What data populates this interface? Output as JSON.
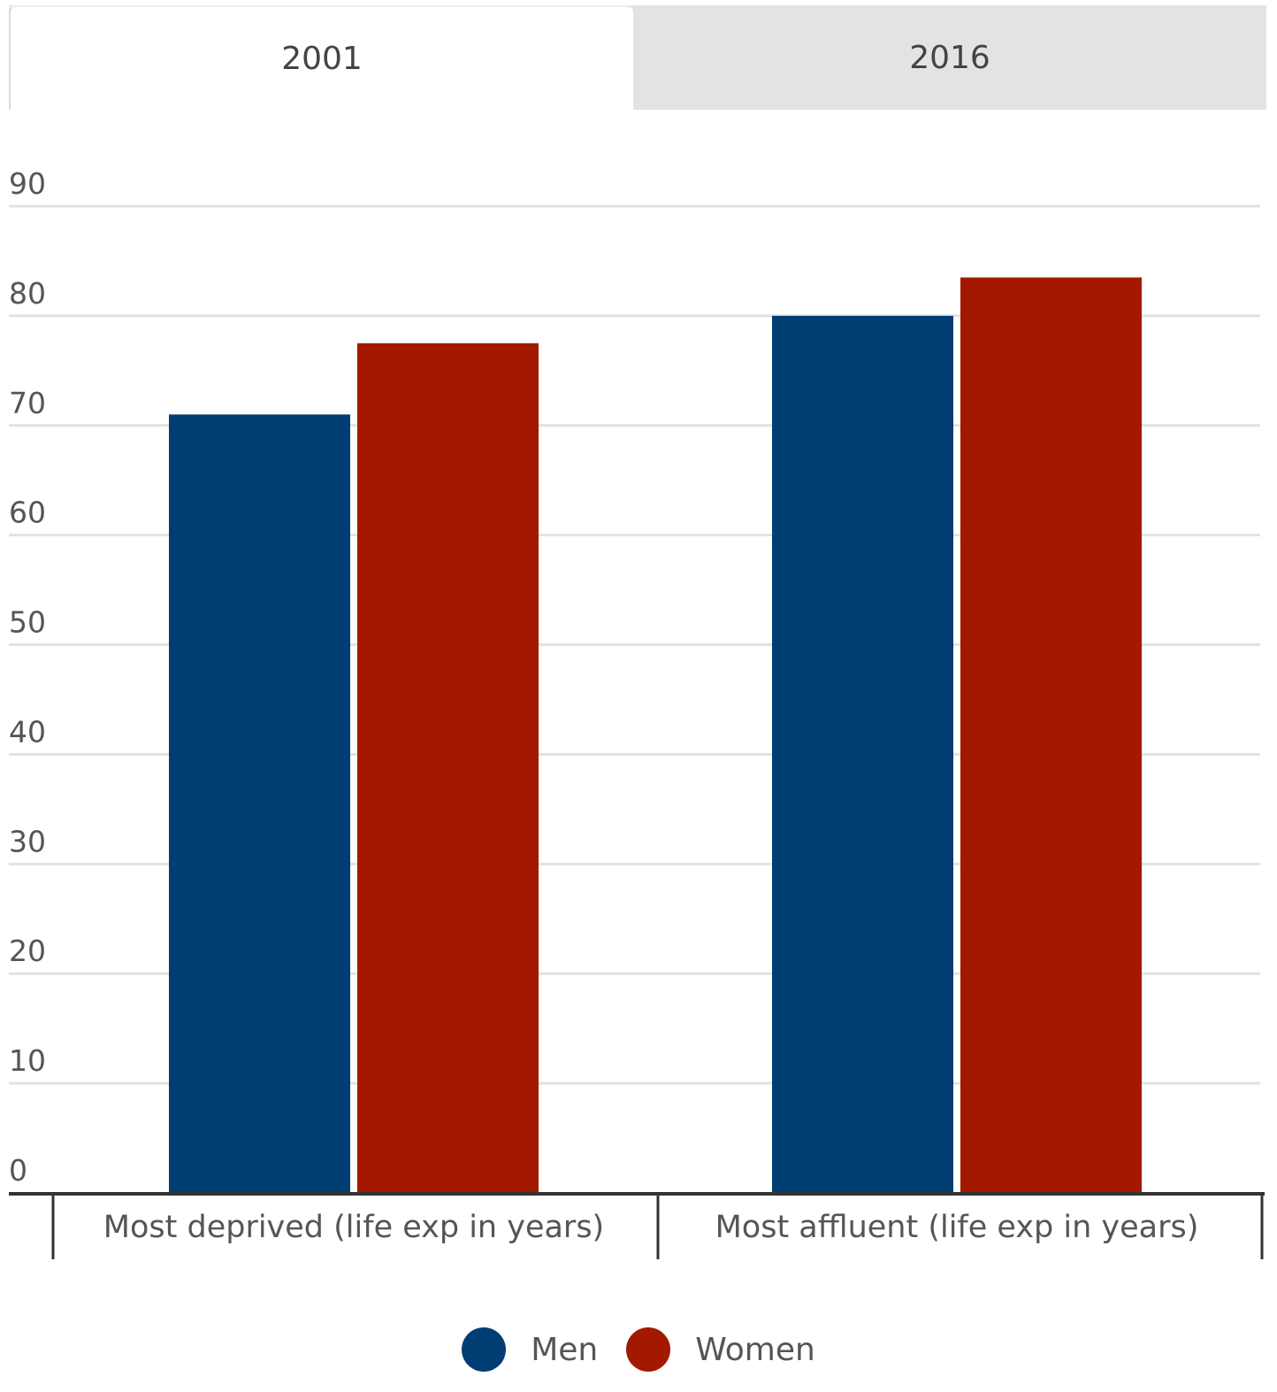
{
  "tabs": [
    {
      "label": "2001",
      "active": true
    },
    {
      "label": "2016",
      "active": false
    }
  ],
  "colors": {
    "men": "#003d73",
    "women": "#a31900",
    "grid": "#e2e2e2",
    "axis": "#333333"
  },
  "chart_data": {
    "type": "bar",
    "categories": [
      "Most deprived (life exp in years)",
      "Most affluent (life exp in years)"
    ],
    "series": [
      {
        "name": "Men",
        "values": [
          71,
          80
        ]
      },
      {
        "name": "Women",
        "values": [
          77.5,
          83.5
        ]
      }
    ],
    "yticks": [
      0,
      10,
      20,
      30,
      40,
      50,
      60,
      70,
      80,
      90
    ],
    "ylim": [
      0,
      90
    ],
    "grid": true,
    "legend": "bottom-center"
  }
}
